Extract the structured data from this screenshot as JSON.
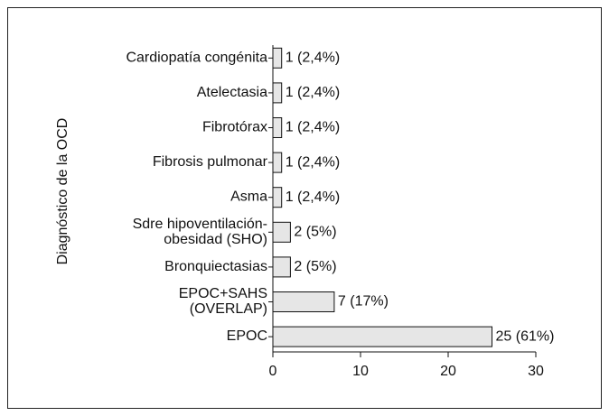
{
  "chart_data": {
    "type": "bar",
    "orientation": "horizontal",
    "y_axis_label": "Diagnóstico de la OCD",
    "categories": [
      "Cardiopatía congénita",
      "Atelectasia",
      "Fibrotórax",
      "Fibrosis pulmonar",
      "Asma",
      "Sdre hipoventilación-\nobesidad (SHO)",
      "Bronquiectasias",
      "EPOC+SAHS\n(OVERLAP)",
      "EPOC"
    ],
    "values": [
      1,
      1,
      1,
      1,
      1,
      2,
      2,
      7,
      25
    ],
    "value_labels": [
      "1 (2,4%)",
      "1 (2,4%)",
      "1 (2,4%)",
      "1 (2,4%)",
      "1 (2,4%)",
      "2 (5%)",
      "2 (5%)",
      "7 (17%)",
      "25 (61%)"
    ],
    "color": "#e6e6e6",
    "xlim": [
      0,
      30
    ],
    "xticks": [
      0,
      10,
      20,
      30
    ]
  }
}
